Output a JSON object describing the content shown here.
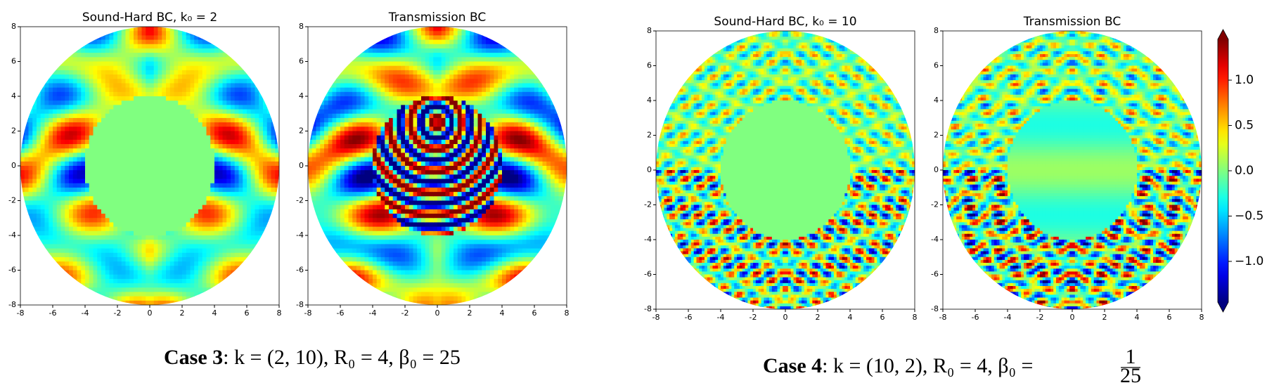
{
  "figures": [
    {
      "panels": [
        {
          "title": "Sound-Hard BC, k₀ = 2",
          "xlim": [
            -8,
            8
          ],
          "ylim": [
            -8,
            8
          ],
          "xticks": [
            -8,
            -6,
            -4,
            -2,
            0,
            2,
            4,
            6,
            8
          ],
          "yticks": [
            -8,
            -6,
            -4,
            -2,
            0,
            2,
            4,
            6,
            8
          ]
        },
        {
          "title": "Transmission BC",
          "xlim": [
            -8,
            8
          ],
          "ylim": [
            -8,
            8
          ],
          "xticks": [
            -8,
            -6,
            -4,
            -2,
            0,
            2,
            4,
            6,
            8
          ],
          "yticks": [
            -8,
            -6,
            -4,
            -2,
            0,
            2,
            4,
            6,
            8
          ]
        }
      ],
      "caption": {
        "label": "Case 3",
        "text": ": k = (2, 10), R₀ = 4, β₀ = 25"
      }
    },
    {
      "panels": [
        {
          "title": "Sound-Hard BC, k₀ = 10",
          "xlim": [
            -8,
            8
          ],
          "ylim": [
            -8,
            8
          ],
          "xticks": [
            -8,
            -6,
            -4,
            -2,
            0,
            2,
            4,
            6,
            8
          ],
          "yticks": [
            -8,
            -6,
            -4,
            -2,
            0,
            2,
            4,
            6,
            8
          ]
        },
        {
          "title": "Transmission BC",
          "xlim": [
            -8,
            8
          ],
          "ylim": [
            -8,
            8
          ],
          "xticks": [
            -8,
            -6,
            -4,
            -2,
            0,
            2,
            4,
            6,
            8
          ],
          "yticks": [
            -8,
            -6,
            -4,
            -2,
            0,
            2,
            4,
            6,
            8
          ]
        }
      ],
      "caption": {
        "label": "Case 4",
        "text": ": k = (10, 2), R₀ = 4, β₀ =",
        "numerator": "1",
        "denominator": "25"
      }
    }
  ],
  "colorbar": {
    "lim": [
      -1.45,
      1.45
    ],
    "ticks": [
      {
        "value": 1,
        "label": "1.0"
      },
      {
        "value": 0.5,
        "label": "0.5"
      },
      {
        "value": 0,
        "label": "0.0"
      },
      {
        "value": -0.5,
        "label": "−0.5"
      },
      {
        "value": -1,
        "label": "−1.0"
      }
    ]
  }
}
